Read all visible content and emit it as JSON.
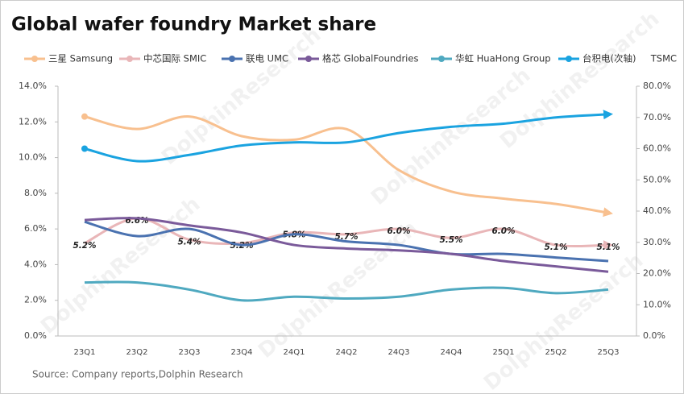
{
  "chart_data": {
    "type": "line",
    "title": "Global wafer foundry Market share",
    "source": "Source:  Company  reports,Dolphin   Research",
    "watermark": "DolphinResearch",
    "categories": [
      "23Q1",
      "23Q2",
      "23Q3",
      "23Q4",
      "24Q1",
      "24Q2",
      "24Q3",
      "24Q4",
      "25Q1",
      "25Q2",
      "25Q3"
    ],
    "ylim": [
      0,
      14
    ],
    "yticks": [
      {
        "value": 0,
        "label": "0.0%"
      },
      {
        "value": 2,
        "label": "2.0%"
      },
      {
        "value": 4,
        "label": "4.0%"
      },
      {
        "value": 6,
        "label": "6.0%"
      },
      {
        "value": 8,
        "label": "8.0%"
      },
      {
        "value": 10,
        "label": "10.0%"
      },
      {
        "value": 12,
        "label": "12.0%"
      },
      {
        "value": 14,
        "label": "14.0%"
      }
    ],
    "y2lim": [
      0,
      80
    ],
    "y2ticks": [
      {
        "value": 0,
        "label": "0.0%"
      },
      {
        "value": 10,
        "label": "10.0%"
      },
      {
        "value": 20,
        "label": "20.0%"
      },
      {
        "value": 30,
        "label": "30.0%"
      },
      {
        "value": 40,
        "label": "40.0%"
      },
      {
        "value": 50,
        "label": "50.0%"
      },
      {
        "value": 60,
        "label": "60.0%"
      },
      {
        "value": 70,
        "label": "70.0%"
      },
      {
        "value": 80,
        "label": "80.0%"
      }
    ],
    "series": [
      {
        "name": "三星 Samsung",
        "color": "#f8c08f",
        "values": [
          12.3,
          11.6,
          12.3,
          11.2,
          11.0,
          11.6,
          9.3,
          8.1,
          7.7,
          7.4,
          6.9
        ]
      },
      {
        "name": "中芯国际 SMIC",
        "color": "#e9b6b8",
        "values": [
          5.2,
          6.6,
          5.4,
          5.2,
          5.8,
          5.7,
          6.0,
          5.5,
          6.0,
          5.1,
          5.1
        ],
        "value_labels": [
          "5.2%",
          "6.6%",
          "5.4%",
          "5.2%",
          "5.8%",
          "5.7%",
          "6.0%",
          "5.5%",
          "6.0%",
          "5.1%",
          "5.1%"
        ]
      },
      {
        "name": "联电 UMC",
        "color": "#4a72b0",
        "values": [
          6.4,
          5.6,
          6.0,
          5.1,
          5.7,
          5.3,
          5.1,
          4.6,
          4.6,
          4.4,
          4.2
        ]
      },
      {
        "name": "格芯 GlobalFoundries",
        "color": "#7a5a9a",
        "values": [
          6.5,
          6.6,
          6.2,
          5.8,
          5.1,
          4.9,
          4.8,
          4.6,
          4.2,
          3.9,
          3.6
        ]
      },
      {
        "name": "华虹 HuaHong Group",
        "color": "#4fa9c0",
        "values": [
          3.0,
          3.0,
          2.6,
          2.0,
          2.2,
          2.1,
          2.2,
          2.6,
          2.7,
          2.4,
          2.6
        ]
      },
      {
        "name": "台积电(次轴)     TSMC",
        "color": "#1aa3e0",
        "axis": "y2",
        "values": [
          60,
          56,
          58,
          61,
          62,
          62,
          65,
          67,
          68,
          70,
          71
        ]
      }
    ]
  }
}
